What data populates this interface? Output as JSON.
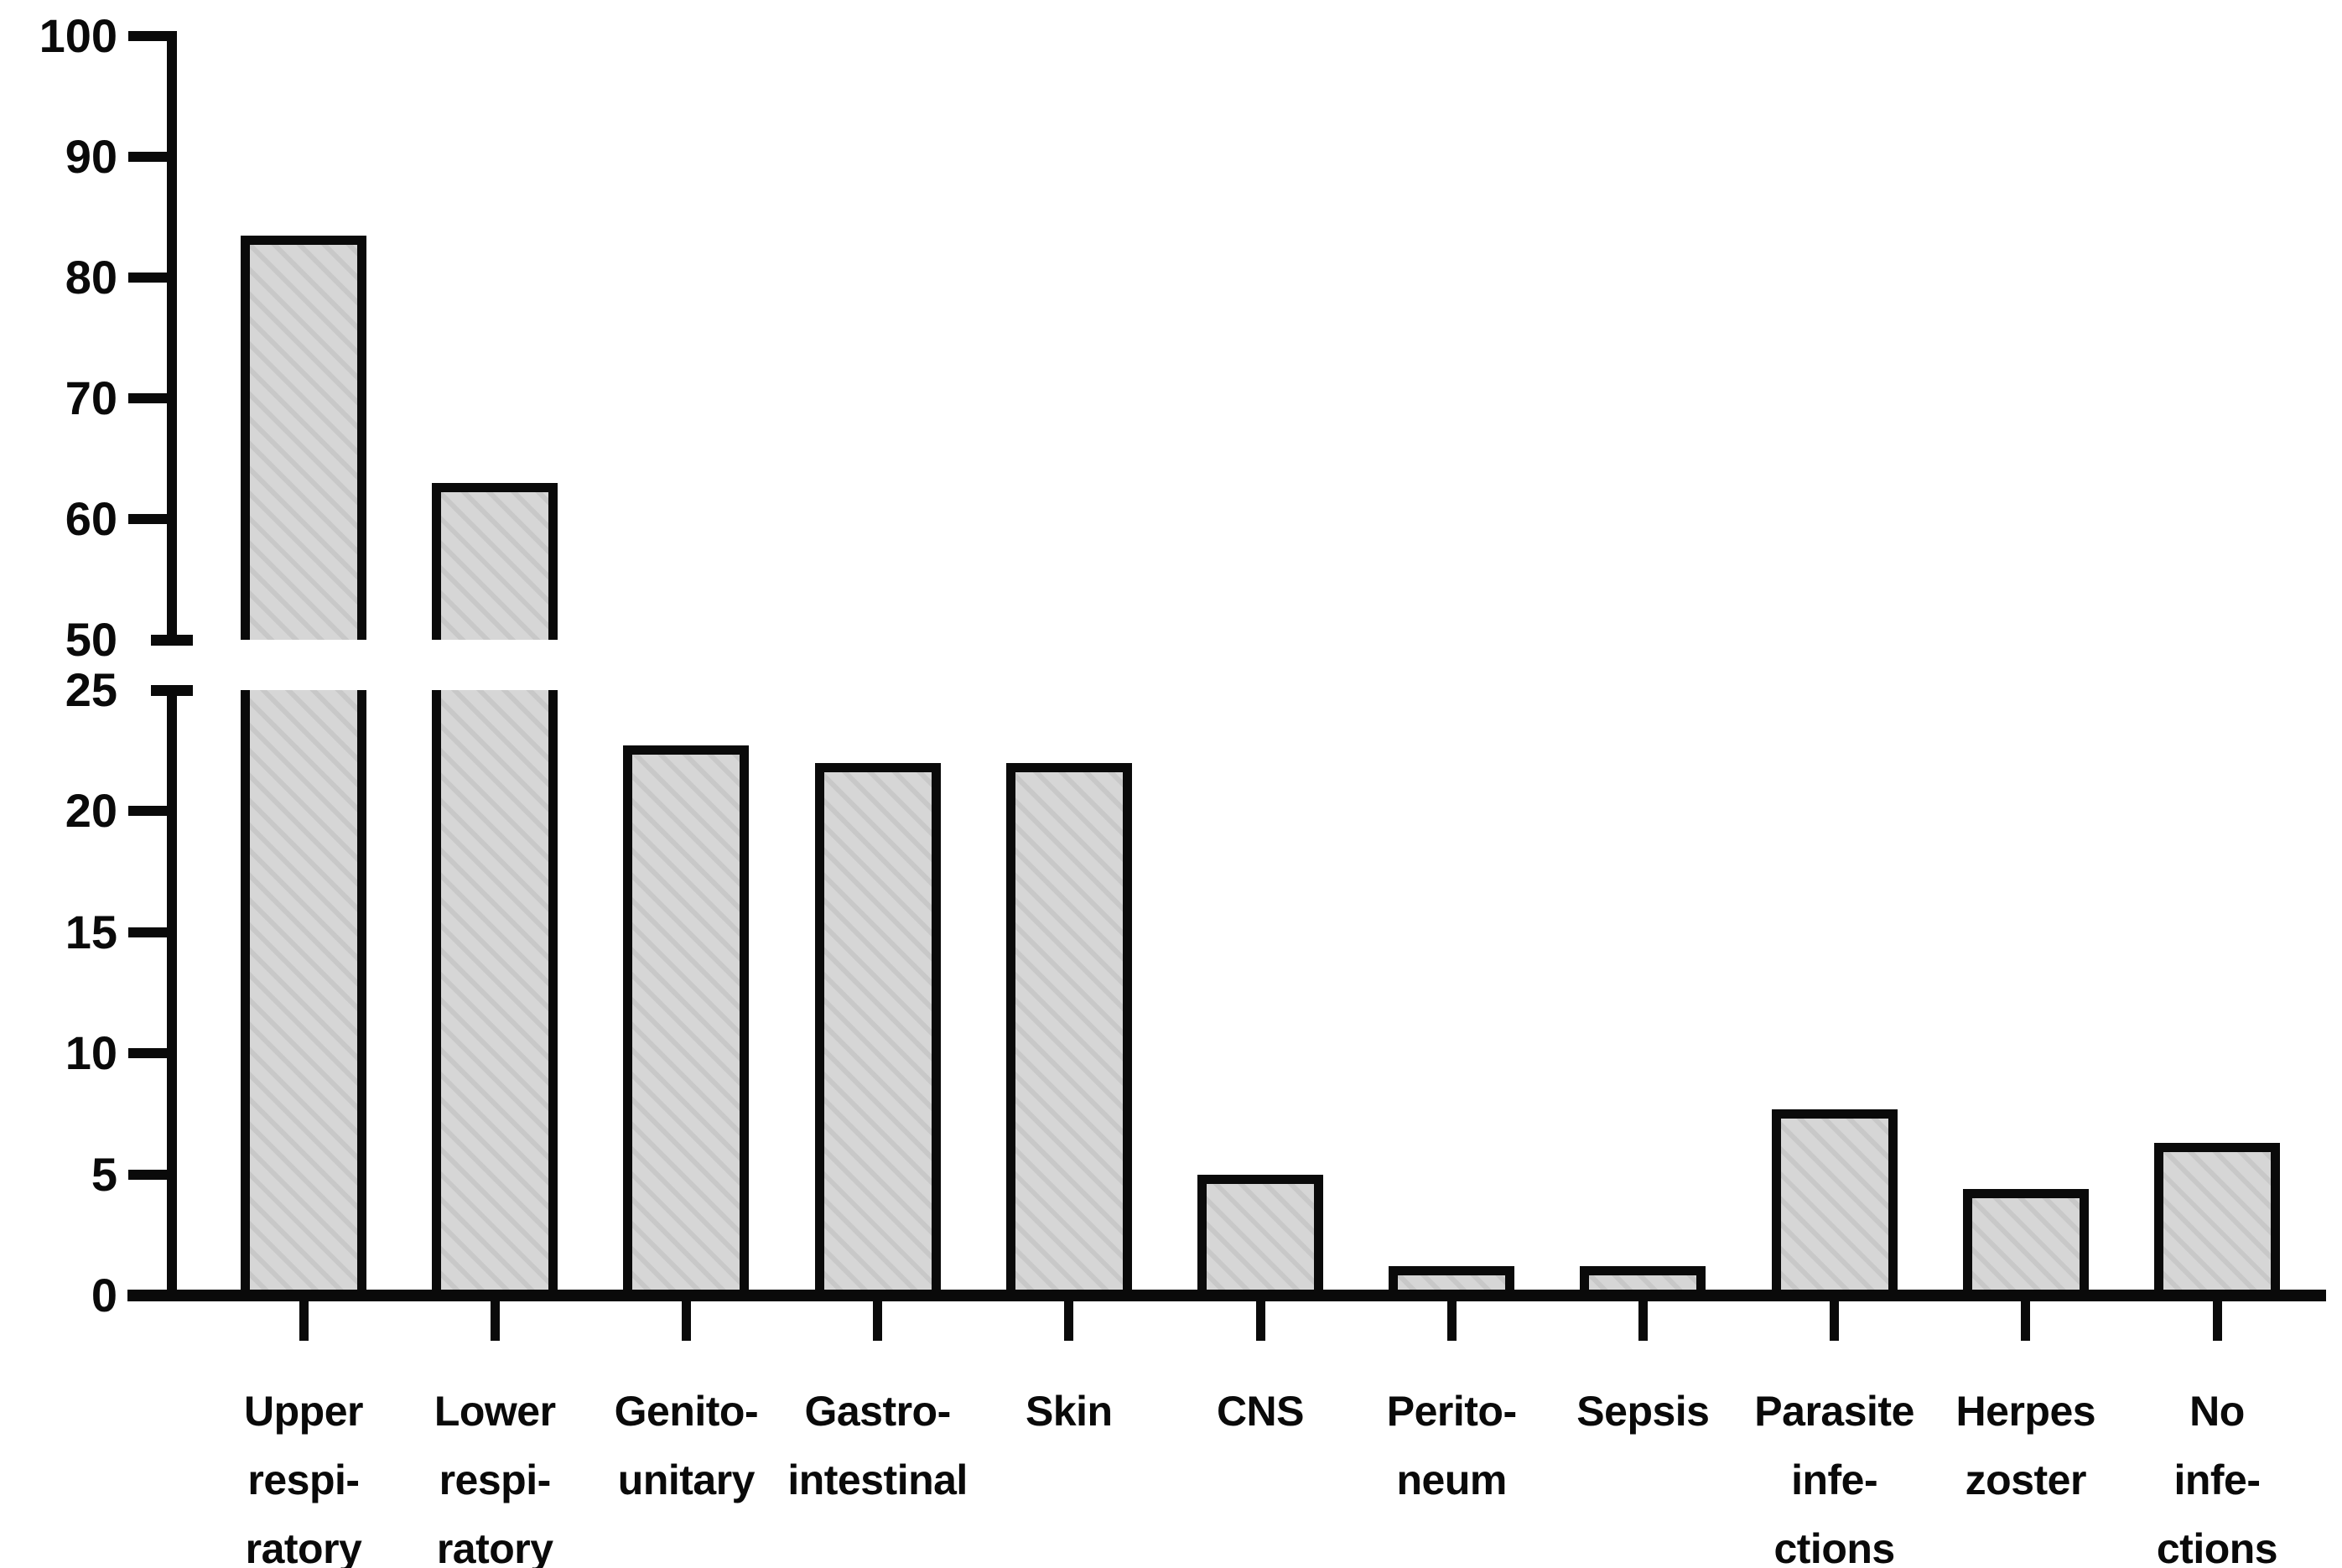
{
  "chart_data": {
    "type": "bar",
    "title": "",
    "xlabel": "",
    "ylabel": "",
    "orientation": "vertical",
    "grid": false,
    "legend": false,
    "categories": [
      "Upper respiratory",
      "Lower respiratory",
      "Genito-unitary",
      "Gastro-intestinal",
      "Skin",
      "CNS",
      "Peritoneum",
      "Sepsis",
      "Parasite infections",
      "Herpes zoster",
      "No infections"
    ],
    "category_label_lines": [
      [
        "Upper",
        "respi-",
        "ratory"
      ],
      [
        "Lower",
        "respi-",
        "ratory"
      ],
      [
        "Genito-",
        "unitary"
      ],
      [
        "Gastro-",
        "intestinal"
      ],
      [
        "Skin"
      ],
      [
        "CNS"
      ],
      [
        "Perito-",
        "neum"
      ],
      [
        "Sepsis"
      ],
      [
        "Parasite",
        "infe-",
        "ctions"
      ],
      [
        "Herpes",
        "zoster"
      ],
      [
        "No",
        "infe-",
        "ctions"
      ]
    ],
    "values": [
      83.5,
      63,
      22.7,
      22,
      22,
      5,
      1.2,
      1.2,
      7.7,
      4.4,
      6.3
    ],
    "y_axis": {
      "broken": true,
      "upper_segment": {
        "min": 50,
        "max": 100,
        "ticks": [
          50,
          60,
          70,
          80,
          90,
          100
        ]
      },
      "lower_segment": {
        "min": 0,
        "max": 25,
        "ticks": [
          0,
          5,
          10,
          15,
          20,
          25
        ]
      }
    },
    "bar_style": "diagonal-hatch",
    "colors": {
      "bar_fill": "#d6d6d6",
      "bar_hatch": "#c8c8c8",
      "bar_border": "#0a0a0a",
      "axis": "#0a0a0a",
      "text": "#0a0a0a",
      "background": "#ffffff"
    }
  }
}
